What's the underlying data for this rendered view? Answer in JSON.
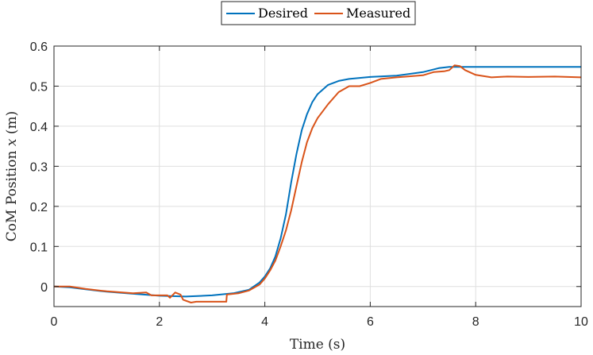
{
  "chart_data": {
    "type": "line",
    "title": "",
    "xlabel": "Time (s)",
    "ylabel_prefix": "CoM Position ",
    "ylabel_var": "x",
    "ylabel_suffix": " (m)",
    "xlim": [
      0,
      10
    ],
    "ylim": [
      -0.05,
      0.6
    ],
    "xticks": [
      0,
      2,
      4,
      6,
      8,
      10
    ],
    "xtick_labels": [
      "0",
      "2",
      "4",
      "6",
      "8",
      "10"
    ],
    "yticks": [
      0,
      0.1,
      0.2,
      0.3,
      0.4,
      0.5,
      0.6
    ],
    "ytick_labels": [
      "0",
      "0.1",
      "0.2",
      "0.3",
      "0.4",
      "0.5",
      "0.6"
    ],
    "grid": true,
    "legend_position": "top-center",
    "series": [
      {
        "name": "Desired",
        "color": "#0072BD",
        "points": [
          [
            0,
            0
          ],
          [
            0.3,
            -0.002
          ],
          [
            0.6,
            -0.007
          ],
          [
            1.0,
            -0.013
          ],
          [
            1.5,
            -0.018
          ],
          [
            2.0,
            -0.023
          ],
          [
            2.5,
            -0.025
          ],
          [
            3.0,
            -0.022
          ],
          [
            3.4,
            -0.017
          ],
          [
            3.7,
            -0.008
          ],
          [
            3.9,
            0.01
          ],
          [
            4.0,
            0.025
          ],
          [
            4.1,
            0.045
          ],
          [
            4.2,
            0.075
          ],
          [
            4.3,
            0.12
          ],
          [
            4.4,
            0.18
          ],
          [
            4.5,
            0.26
          ],
          [
            4.6,
            0.33
          ],
          [
            4.7,
            0.39
          ],
          [
            4.8,
            0.43
          ],
          [
            4.9,
            0.46
          ],
          [
            5.0,
            0.48
          ],
          [
            5.2,
            0.503
          ],
          [
            5.4,
            0.513
          ],
          [
            5.6,
            0.518
          ],
          [
            6.0,
            0.523
          ],
          [
            6.5,
            0.526
          ],
          [
            7.0,
            0.535
          ],
          [
            7.3,
            0.545
          ],
          [
            7.5,
            0.548
          ],
          [
            8.0,
            0.548
          ],
          [
            10.0,
            0.548
          ]
        ]
      },
      {
        "name": "Measured",
        "color": "#D95319",
        "points": [
          [
            0,
            0
          ],
          [
            0.3,
            0
          ],
          [
            0.6,
            -0.006
          ],
          [
            1.0,
            -0.012
          ],
          [
            1.5,
            -0.017
          ],
          [
            1.75,
            -0.015
          ],
          [
            1.85,
            -0.022
          ],
          [
            2.0,
            -0.022
          ],
          [
            2.15,
            -0.022
          ],
          [
            2.2,
            -0.028
          ],
          [
            2.3,
            -0.015
          ],
          [
            2.4,
            -0.02
          ],
          [
            2.45,
            -0.033
          ],
          [
            2.6,
            -0.04
          ],
          [
            2.7,
            -0.038
          ],
          [
            3.27,
            -0.038
          ],
          [
            3.28,
            -0.02
          ],
          [
            3.5,
            -0.017
          ],
          [
            3.7,
            -0.01
          ],
          [
            3.9,
            0.005
          ],
          [
            4.0,
            0.02
          ],
          [
            4.1,
            0.04
          ],
          [
            4.2,
            0.065
          ],
          [
            4.3,
            0.1
          ],
          [
            4.4,
            0.14
          ],
          [
            4.5,
            0.19
          ],
          [
            4.6,
            0.25
          ],
          [
            4.7,
            0.31
          ],
          [
            4.8,
            0.36
          ],
          [
            4.9,
            0.395
          ],
          [
            5.0,
            0.42
          ],
          [
            5.2,
            0.455
          ],
          [
            5.4,
            0.485
          ],
          [
            5.6,
            0.5
          ],
          [
            5.8,
            0.5
          ],
          [
            6.0,
            0.508
          ],
          [
            6.2,
            0.518
          ],
          [
            6.5,
            0.522
          ],
          [
            7.0,
            0.527
          ],
          [
            7.2,
            0.535
          ],
          [
            7.4,
            0.537
          ],
          [
            7.5,
            0.54
          ],
          [
            7.6,
            0.552
          ],
          [
            7.7,
            0.55
          ],
          [
            7.8,
            0.54
          ],
          [
            8.0,
            0.528
          ],
          [
            8.3,
            0.522
          ],
          [
            8.6,
            0.524
          ],
          [
            9.0,
            0.523
          ],
          [
            9.5,
            0.524
          ],
          [
            10.0,
            0.522
          ]
        ]
      }
    ]
  }
}
